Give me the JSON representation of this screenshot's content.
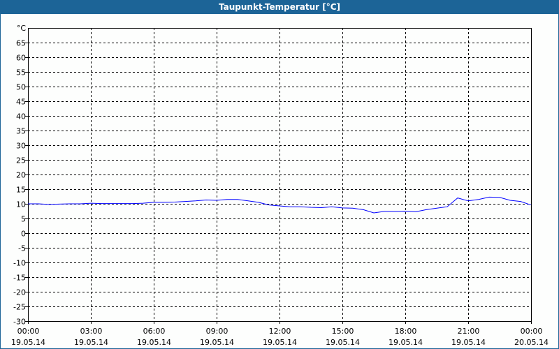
{
  "title": "Taupunkt-Temperatur [°C]",
  "chart_data": {
    "type": "line",
    "title": "Taupunkt-Temperatur [°C]",
    "ylabel": "°C",
    "ylim": [
      -30,
      70
    ],
    "yticks": [
      65,
      60,
      55,
      50,
      45,
      40,
      35,
      30,
      25,
      20,
      15,
      10,
      5,
      0,
      -5,
      -10,
      -15,
      -20,
      -25,
      -30
    ],
    "xlim_hours": [
      0,
      24
    ],
    "xticks": [
      {
        "time": "00:00",
        "date": "19.05.14"
      },
      {
        "time": "03:00",
        "date": "19.05.14"
      },
      {
        "time": "06:00",
        "date": "19.05.14"
      },
      {
        "time": "09:00",
        "date": "19.05.14"
      },
      {
        "time": "12:00",
        "date": "19.05.14"
      },
      {
        "time": "15:00",
        "date": "19.05.14"
      },
      {
        "time": "18:00",
        "date": "19.05.14"
      },
      {
        "time": "21:00",
        "date": "19.05.14"
      },
      {
        "time": "00:00",
        "date": "20.05.14"
      }
    ],
    "grid": true,
    "line_color": "#0000ff",
    "series": [
      {
        "x_hours": [
          0,
          0.5,
          1,
          1.5,
          2,
          2.5,
          3,
          3.5,
          4,
          4.5,
          5,
          5.5,
          6,
          6.5,
          7,
          7.5,
          8,
          8.5,
          9,
          9.5,
          10,
          10.5,
          11,
          11.5,
          12,
          12.5,
          13,
          13.5,
          14,
          14.5,
          15,
          15.5,
          16,
          16.5,
          17,
          17.5,
          18,
          18.5,
          19,
          19.5,
          20,
          20.5,
          21,
          21.5,
          22,
          22.5,
          23,
          23.5,
          24
        ],
        "values": [
          10.0,
          10.0,
          9.8,
          9.9,
          10.0,
          10.0,
          10.2,
          10.1,
          10.1,
          10.1,
          10.1,
          10.2,
          10.5,
          10.5,
          10.6,
          10.8,
          11.0,
          11.3,
          11.2,
          11.5,
          11.5,
          11.0,
          10.5,
          9.6,
          9.3,
          9.0,
          9.0,
          8.8,
          8.7,
          9.0,
          8.6,
          8.5,
          8.0,
          6.9,
          7.4,
          7.4,
          7.5,
          7.3,
          8.0,
          8.5,
          9.0,
          12.0,
          11.0,
          11.5,
          12.3,
          12.2,
          11.2,
          10.8,
          9.6
        ]
      }
    ]
  }
}
